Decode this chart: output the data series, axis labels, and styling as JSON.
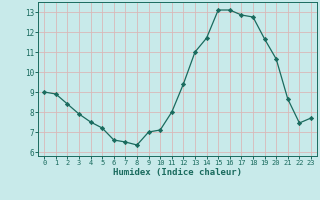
{
  "x": [
    0,
    1,
    2,
    3,
    4,
    5,
    6,
    7,
    8,
    9,
    10,
    11,
    12,
    13,
    14,
    15,
    16,
    17,
    18,
    19,
    20,
    21,
    22,
    23
  ],
  "y": [
    9.0,
    8.9,
    8.4,
    7.9,
    7.5,
    7.2,
    6.6,
    6.5,
    6.35,
    7.0,
    7.1,
    8.0,
    9.4,
    11.0,
    11.7,
    13.1,
    13.1,
    12.85,
    12.75,
    11.65,
    10.65,
    8.65,
    7.45,
    7.7
  ],
  "line_color": "#1a6b5e",
  "marker": "D",
  "marker_size": 2.2,
  "bg_color": "#c8eaea",
  "grid_color": "#d9b8b8",
  "tick_color": "#1a6b5e",
  "xlabel": "Humidex (Indice chaleur)",
  "ylim": [
    5.8,
    13.5
  ],
  "xlim": [
    -0.5,
    23.5
  ],
  "yticks": [
    6,
    7,
    8,
    9,
    10,
    11,
    12,
    13
  ],
  "xticks": [
    0,
    1,
    2,
    3,
    4,
    5,
    6,
    7,
    8,
    9,
    10,
    11,
    12,
    13,
    14,
    15,
    16,
    17,
    18,
    19,
    20,
    21,
    22,
    23
  ]
}
